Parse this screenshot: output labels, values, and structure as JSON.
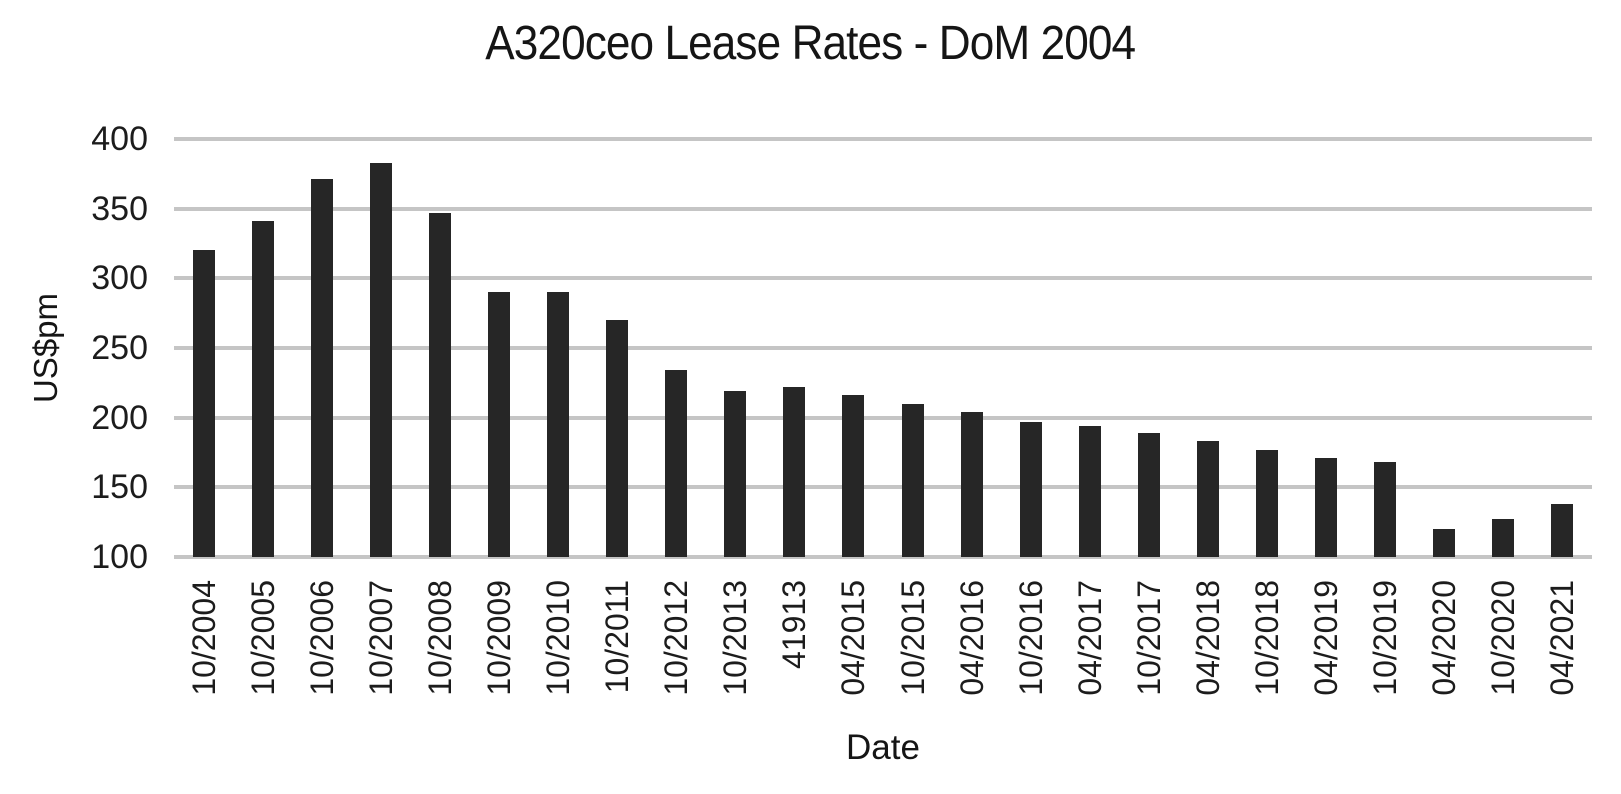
{
  "chart_data": {
    "type": "bar",
    "title": "A320ceo Lease Rates - DoM 2004",
    "xlabel": "Date",
    "ylabel": "US$pm",
    "categories": [
      "10/2004",
      "10/2005",
      "10/2006",
      "10/2007",
      "10/2008",
      "10/2009",
      "10/2010",
      "10/2011",
      "10/2012",
      "10/2013",
      "41913",
      "04/2015",
      "10/2015",
      "04/2016",
      "10/2016",
      "04/2017",
      "10/2017",
      "04/2018",
      "10/2018",
      "04/2019",
      "10/2019",
      "04/2020",
      "10/2020",
      "04/2021"
    ],
    "values": [
      320,
      341,
      371,
      383,
      347,
      290,
      290,
      270,
      234,
      219,
      222,
      216,
      210,
      204,
      197,
      194,
      189,
      183,
      177,
      171,
      168,
      120,
      127,
      138
    ],
    "ylim": [
      100,
      400
    ],
    "yticks": [
      100,
      150,
      200,
      250,
      300,
      350,
      400
    ],
    "grid": "horizontal",
    "legend": "none",
    "bar_color": "#262626",
    "gridline_color": "#c5c5c5",
    "text_color": "#1c1c1c",
    "background": "#ffffff"
  }
}
